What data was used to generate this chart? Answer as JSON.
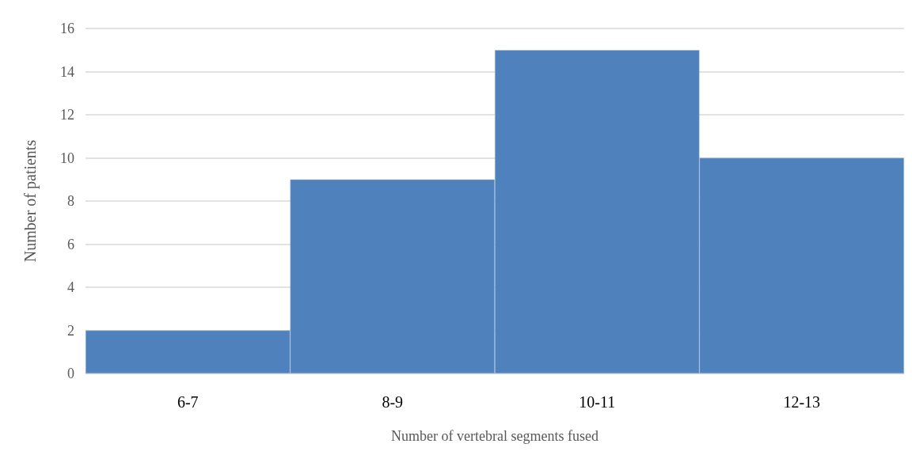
{
  "chart_data": {
    "type": "bar",
    "xlabel": "Number of vertebral segments fused",
    "ylabel": "Number of patients",
    "categories": [
      "6-7",
      "8-9",
      "10-11",
      "12-13"
    ],
    "values": [
      2,
      9,
      15,
      10
    ],
    "color": "#4f81bd",
    "ylim": [
      0,
      16
    ],
    "yticks": [
      0,
      2,
      4,
      6,
      8,
      10,
      12,
      14,
      16
    ],
    "grid": "y"
  }
}
